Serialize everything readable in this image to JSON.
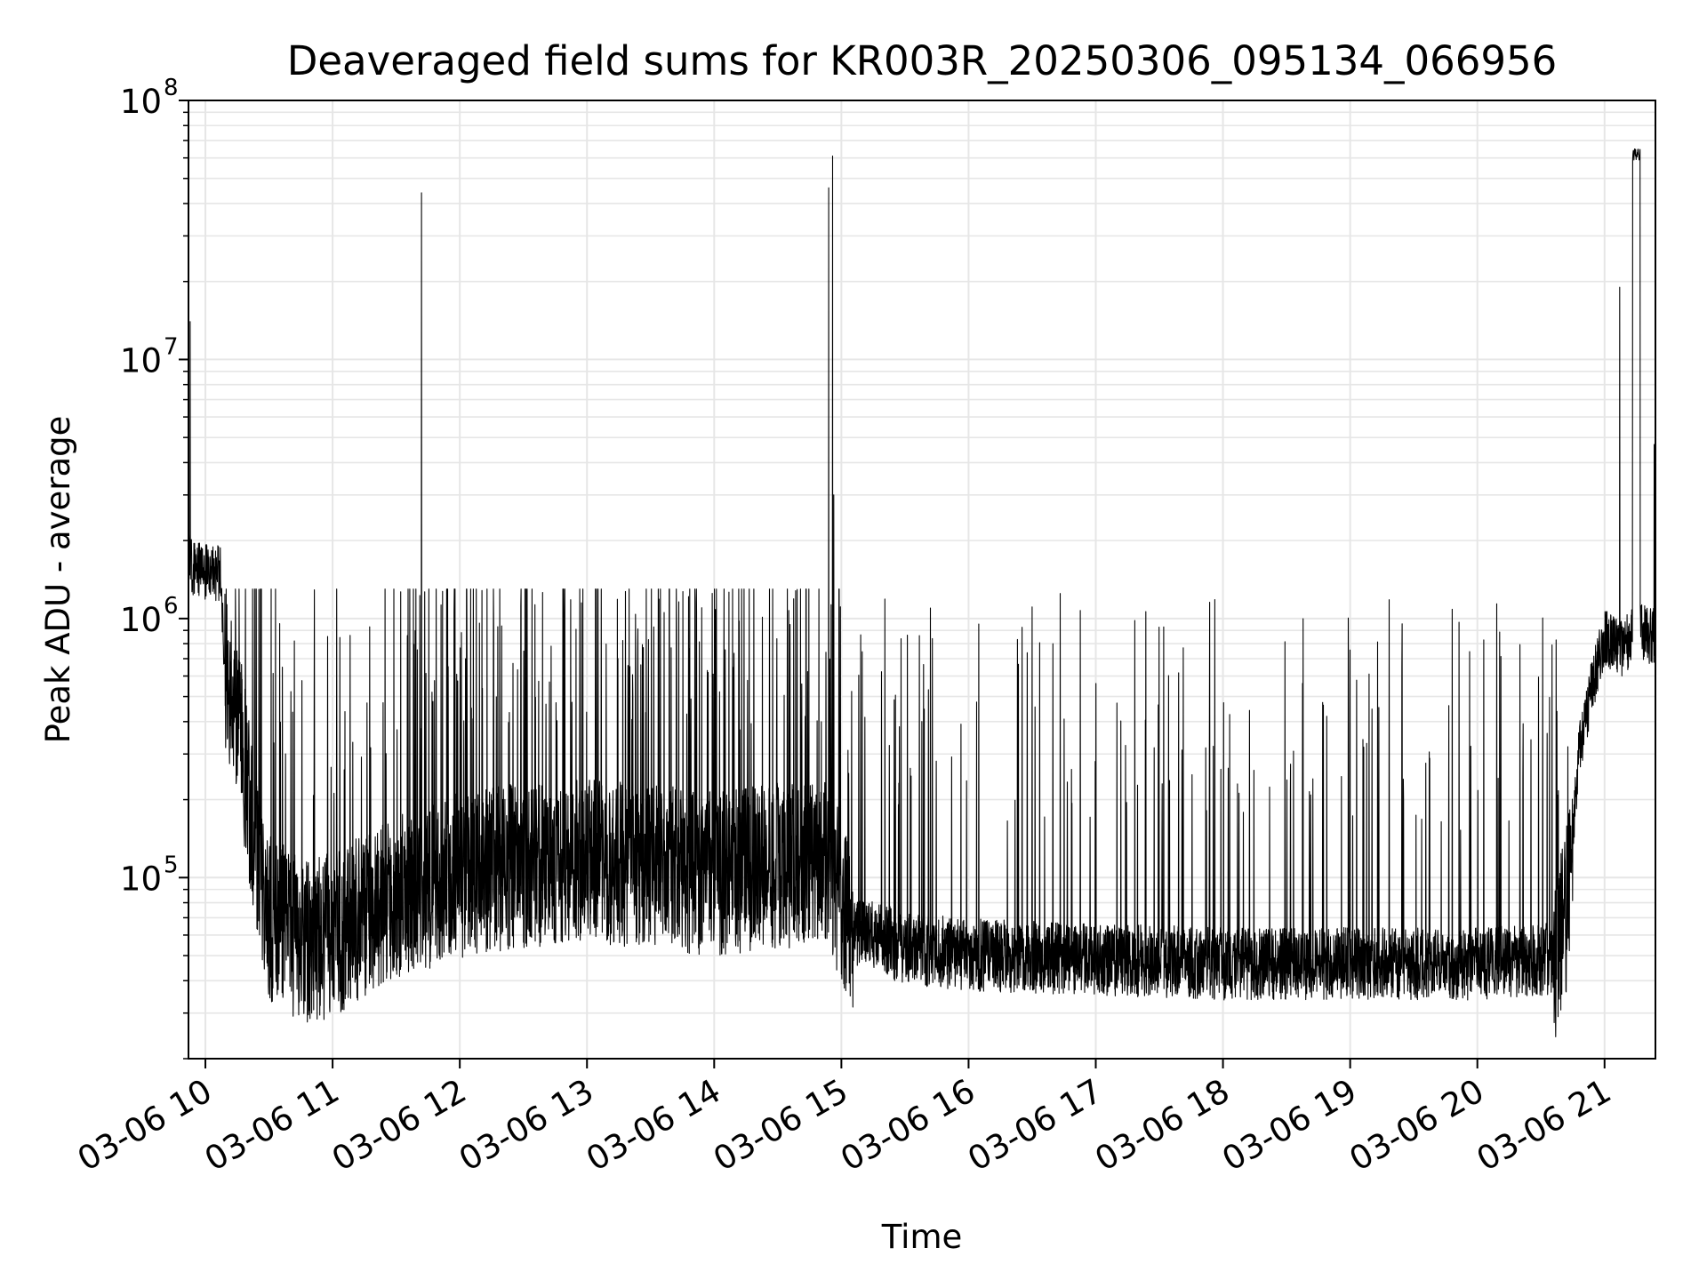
{
  "chart_data": {
    "type": "line",
    "title": "Deaveraged field sums for KR003R_20250306_095134_066956",
    "xlabel": "Time",
    "ylabel": "Peak ADU - average",
    "yscale": "log",
    "ylim": [
      20000,
      100000000
    ],
    "xlim": [
      9.867,
      21.4
    ],
    "grid": true,
    "line_color": "#000000",
    "grid_color": "#e6e6e6",
    "x_ticks": [
      {
        "value": 10,
        "label": "03-06 10"
      },
      {
        "value": 11,
        "label": "03-06 11"
      },
      {
        "value": 12,
        "label": "03-06 12"
      },
      {
        "value": 13,
        "label": "03-06 13"
      },
      {
        "value": 14,
        "label": "03-06 14"
      },
      {
        "value": 15,
        "label": "03-06 15"
      },
      {
        "value": 16,
        "label": "03-06 16"
      },
      {
        "value": 17,
        "label": "03-06 17"
      },
      {
        "value": 18,
        "label": "03-06 18"
      },
      {
        "value": 19,
        "label": "03-06 19"
      },
      {
        "value": 20,
        "label": "03-06 20"
      },
      {
        "value": 21,
        "label": "03-06 21"
      }
    ],
    "y_ticks": [
      {
        "value": 100000,
        "base": "10",
        "exp": "5"
      },
      {
        "value": 1000000,
        "base": "10",
        "exp": "6"
      },
      {
        "value": 10000000,
        "base": "10",
        "exp": "7"
      },
      {
        "value": 100000000,
        "base": "10",
        "exp": "8"
      }
    ],
    "series": [
      {
        "name": "field sums",
        "noise_seed": 20250306,
        "baseline": [
          {
            "x": 9.867,
            "y": 2000000
          },
          {
            "x": 9.88,
            "y": 1600000
          },
          {
            "x": 10.0,
            "y": 1500000
          },
          {
            "x": 10.12,
            "y": 1500000
          },
          {
            "x": 10.15,
            "y": 650000
          },
          {
            "x": 10.25,
            "y": 500000
          },
          {
            "x": 10.35,
            "y": 200000
          },
          {
            "x": 10.5,
            "y": 75000
          },
          {
            "x": 10.8,
            "y": 60000
          },
          {
            "x": 11.0,
            "y": 65000
          },
          {
            "x": 11.5,
            "y": 90000
          },
          {
            "x": 12.0,
            "y": 110000
          },
          {
            "x": 12.5,
            "y": 120000
          },
          {
            "x": 13.0,
            "y": 125000
          },
          {
            "x": 13.5,
            "y": 120000
          },
          {
            "x": 14.0,
            "y": 110000
          },
          {
            "x": 14.5,
            "y": 120000
          },
          {
            "x": 14.9,
            "y": 120000
          },
          {
            "x": 15.1,
            "y": 65000
          },
          {
            "x": 15.5,
            "y": 55000
          },
          {
            "x": 16.0,
            "y": 52000
          },
          {
            "x": 17.0,
            "y": 50000
          },
          {
            "x": 18.0,
            "y": 48000
          },
          {
            "x": 19.0,
            "y": 48000
          },
          {
            "x": 20.0,
            "y": 48000
          },
          {
            "x": 20.6,
            "y": 50000
          },
          {
            "x": 20.7,
            "y": 80000
          },
          {
            "x": 20.8,
            "y": 300000
          },
          {
            "x": 20.9,
            "y": 550000
          },
          {
            "x": 21.0,
            "y": 850000
          },
          {
            "x": 21.15,
            "y": 750000
          },
          {
            "x": 21.22,
            "y": 900000
          },
          {
            "x": 21.4,
            "y": 850000
          }
        ],
        "spikes": [
          {
            "x": 9.88,
            "y": 14000000
          },
          {
            "x": 11.7,
            "y": 44000000
          },
          {
            "x": 14.9,
            "y": 46000000
          },
          {
            "x": 14.93,
            "y": 61000000
          },
          {
            "x": 14.94,
            "y": 3000000
          },
          {
            "x": 21.12,
            "y": 19000000
          },
          {
            "x": 21.39,
            "y": 4700000
          }
        ],
        "plateau": {
          "x0": 21.22,
          "x1": 21.28,
          "y": 62000000
        }
      }
    ]
  }
}
